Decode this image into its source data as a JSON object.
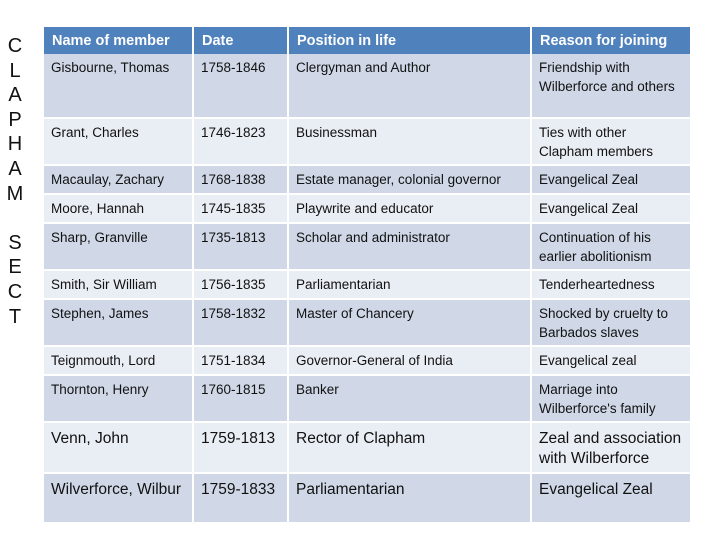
{
  "side_title": [
    "C",
    "L",
    "A",
    "P",
    "H",
    "A",
    "M",
    "",
    "S",
    "E",
    "C",
    "T"
  ],
  "table": {
    "headers": [
      "Name of member",
      "Date",
      "Position in life",
      "Reason for joining"
    ],
    "rows": [
      [
        "Gisbourne, Thomas",
        "1758-1846",
        "Clergyman and Author",
        "Friendship with Wilberforce and others"
      ],
      [
        "Grant, Charles",
        "1746-1823",
        "Businessman",
        "Ties with other Clapham members"
      ],
      [
        "Macaulay, Zachary",
        "1768-1838",
        "Estate manager, colonial governor",
        "Evangelical Zeal"
      ],
      [
        "Moore, Hannah",
        "1745-1835",
        "Playwrite and educator",
        "Evangelical Zeal"
      ],
      [
        "Sharp, Granville",
        "1735-1813",
        "Scholar and administrator",
        "Continuation of his earlier abolitionism"
      ],
      [
        "Smith, Sir William",
        "1756-1835",
        "Parliamentarian",
        "Tenderheartedness"
      ],
      [
        "Stephen, James",
        "1758-1832",
        "Master of Chancery",
        "Shocked by cruelty to Barbados slaves"
      ],
      [
        "Teignmouth, Lord",
        "1751-1834",
        "Governor-General of India",
        "Evangelical zeal"
      ],
      [
        "Thornton, Henry",
        "1760-1815",
        "Banker",
        "Marriage into Wilberforce's family"
      ],
      [
        "Venn, John",
        "1759-1813",
        "Rector of Clapham",
        "Zeal and association with Wilberforce"
      ],
      [
        "Wilverforce, Wilbur",
        "1759-1833",
        "Parliamentarian",
        "Evangelical Zeal"
      ]
    ]
  },
  "colors": {
    "header_bg": "#4f81bd",
    "row_dark": "#d0d8e8",
    "row_light": "#e9edf4"
  }
}
